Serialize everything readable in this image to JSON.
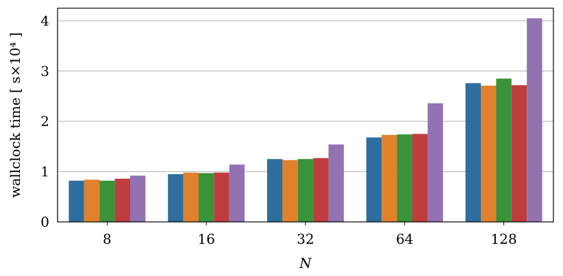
{
  "chart_data": {
    "type": "bar",
    "categories": [
      "8",
      "16",
      "32",
      "64",
      "128"
    ],
    "series": [
      {
        "color": "#2e6e9e",
        "values": [
          0.82,
          0.95,
          1.25,
          1.68,
          2.76
        ]
      },
      {
        "color": "#e1812c",
        "values": [
          0.84,
          0.98,
          1.23,
          1.73,
          2.71
        ]
      },
      {
        "color": "#3a923a",
        "values": [
          0.82,
          0.97,
          1.25,
          1.74,
          2.85
        ]
      },
      {
        "color": "#c03d3e",
        "values": [
          0.86,
          0.98,
          1.27,
          1.75,
          2.72
        ]
      },
      {
        "color": "#9372b2",
        "values": [
          0.92,
          1.14,
          1.54,
          2.36,
          4.05
        ]
      }
    ],
    "xlabel": "N",
    "ylabel": "wallclock time [ s×10⁴ ]",
    "ylim": [
      0,
      4.25
    ],
    "yticks": [
      0,
      1,
      2,
      3,
      4
    ],
    "grid": true
  }
}
